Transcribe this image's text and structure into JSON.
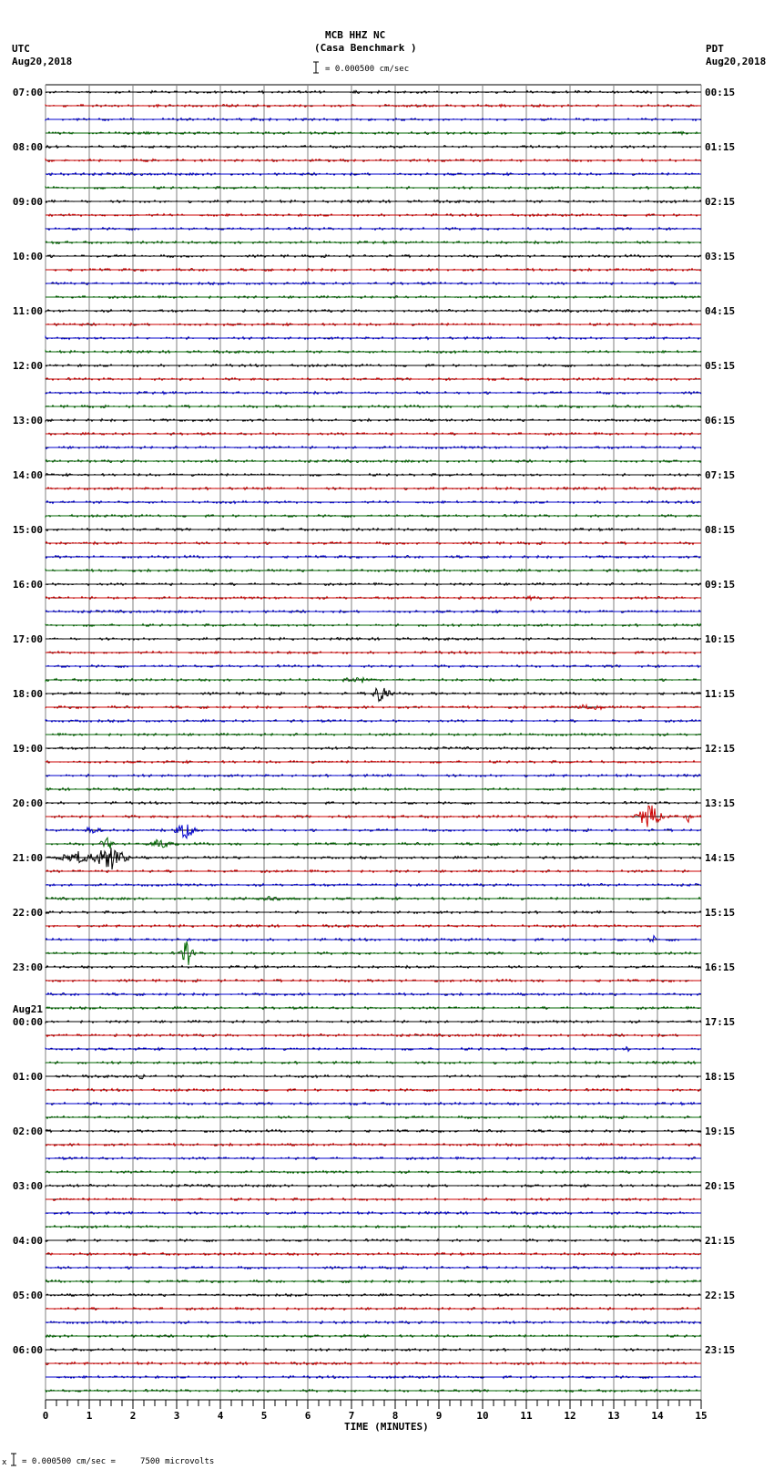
{
  "header": {
    "station": "MCB HHZ NC",
    "location": "(Casa Benchmark )",
    "scale_text": "= 0.000500 cm/sec",
    "left_tz": "UTC",
    "left_date": "Aug20,2018",
    "right_tz": "PDT",
    "right_date": "Aug20,2018"
  },
  "footer": {
    "scale_note": "= 0.000500 cm/sec =     7500 microvolts",
    "marker": "x"
  },
  "colors": {
    "trace_cycle": [
      "#000000",
      "#cc0000",
      "#0000cc",
      "#006600"
    ],
    "grid": "#808080",
    "axis": "#000000"
  },
  "chart_data": {
    "type": "line",
    "title": "MCB HHZ NC (Casa Benchmark )",
    "subtitle": "= 0.000500 cm/sec",
    "xlabel": "TIME (MINUTES)",
    "ylabel": "",
    "xlim": [
      0,
      15
    ],
    "x_ticks": [
      0,
      1,
      2,
      3,
      4,
      5,
      6,
      7,
      8,
      9,
      10,
      11,
      12,
      13,
      14,
      15
    ],
    "minor_tick_step": 0.25,
    "grid": true,
    "rows_per_hour": 4,
    "row_count": 96,
    "left_labels": [
      {
        "row": 0,
        "text": "07:00"
      },
      {
        "row": 4,
        "text": "08:00"
      },
      {
        "row": 8,
        "text": "09:00"
      },
      {
        "row": 12,
        "text": "10:00"
      },
      {
        "row": 16,
        "text": "11:00"
      },
      {
        "row": 20,
        "text": "12:00"
      },
      {
        "row": 24,
        "text": "13:00"
      },
      {
        "row": 28,
        "text": "14:00"
      },
      {
        "row": 32,
        "text": "15:00"
      },
      {
        "row": 36,
        "text": "16:00"
      },
      {
        "row": 40,
        "text": "17:00"
      },
      {
        "row": 44,
        "text": "18:00"
      },
      {
        "row": 48,
        "text": "19:00"
      },
      {
        "row": 52,
        "text": "20:00"
      },
      {
        "row": 56,
        "text": "21:00"
      },
      {
        "row": 60,
        "text": "22:00"
      },
      {
        "row": 64,
        "text": "23:00"
      },
      {
        "row": 68,
        "text": "00:00",
        "date": "Aug21"
      },
      {
        "row": 72,
        "text": "01:00"
      },
      {
        "row": 76,
        "text": "02:00"
      },
      {
        "row": 80,
        "text": "03:00"
      },
      {
        "row": 84,
        "text": "04:00"
      },
      {
        "row": 88,
        "text": "05:00"
      },
      {
        "row": 92,
        "text": "06:00"
      }
    ],
    "right_labels": [
      {
        "row": 0,
        "text": "00:15"
      },
      {
        "row": 4,
        "text": "01:15"
      },
      {
        "row": 8,
        "text": "02:15"
      },
      {
        "row": 12,
        "text": "03:15"
      },
      {
        "row": 16,
        "text": "04:15"
      },
      {
        "row": 20,
        "text": "05:15"
      },
      {
        "row": 24,
        "text": "06:15"
      },
      {
        "row": 28,
        "text": "07:15"
      },
      {
        "row": 32,
        "text": "08:15"
      },
      {
        "row": 36,
        "text": "09:15"
      },
      {
        "row": 40,
        "text": "10:15"
      },
      {
        "row": 44,
        "text": "11:15"
      },
      {
        "row": 48,
        "text": "12:15"
      },
      {
        "row": 52,
        "text": "13:15"
      },
      {
        "row": 56,
        "text": "14:15"
      },
      {
        "row": 60,
        "text": "15:15"
      },
      {
        "row": 64,
        "text": "16:15"
      },
      {
        "row": 68,
        "text": "17:15"
      },
      {
        "row": 72,
        "text": "18:15"
      },
      {
        "row": 76,
        "text": "19:15"
      },
      {
        "row": 80,
        "text": "20:15"
      },
      {
        "row": 84,
        "text": "21:15"
      },
      {
        "row": 88,
        "text": "22:15"
      },
      {
        "row": 92,
        "text": "23:15"
      }
    ],
    "events": [
      {
        "row": 37,
        "minute": 11.1,
        "amp": 4,
        "dur": 0.1
      },
      {
        "row": 43,
        "minute": 7.2,
        "amp": 3,
        "dur": 0.5
      },
      {
        "row": 44,
        "minute": 7.7,
        "amp": 12,
        "dur": 0.3
      },
      {
        "row": 45,
        "minute": 12.4,
        "amp": 3,
        "dur": 0.5
      },
      {
        "row": 53,
        "minute": 13.8,
        "amp": 14,
        "dur": 0.4
      },
      {
        "row": 53,
        "minute": 14.7,
        "amp": 9,
        "dur": 0.05
      },
      {
        "row": 54,
        "minute": 1.1,
        "amp": 5,
        "dur": 0.3
      },
      {
        "row": 54,
        "minute": 3.2,
        "amp": 10,
        "dur": 0.3
      },
      {
        "row": 55,
        "minute": 1.4,
        "amp": 10,
        "dur": 0.2
      },
      {
        "row": 55,
        "minute": 2.6,
        "amp": 6,
        "dur": 0.4
      },
      {
        "row": 56,
        "minute": 0.7,
        "amp": 8,
        "dur": 0.6
      },
      {
        "row": 56,
        "minute": 1.5,
        "amp": 14,
        "dur": 0.5
      },
      {
        "row": 59,
        "minute": 5.2,
        "amp": 3,
        "dur": 0.6
      },
      {
        "row": 62,
        "minute": 13.9,
        "amp": 6,
        "dur": 0.1
      },
      {
        "row": 63,
        "minute": 3.25,
        "amp": 16,
        "dur": 0.2
      },
      {
        "row": 70,
        "minute": 13.3,
        "amp": 5,
        "dur": 0.05
      },
      {
        "row": 72,
        "minute": 2.2,
        "amp": 4,
        "dur": 0.1
      }
    ]
  }
}
